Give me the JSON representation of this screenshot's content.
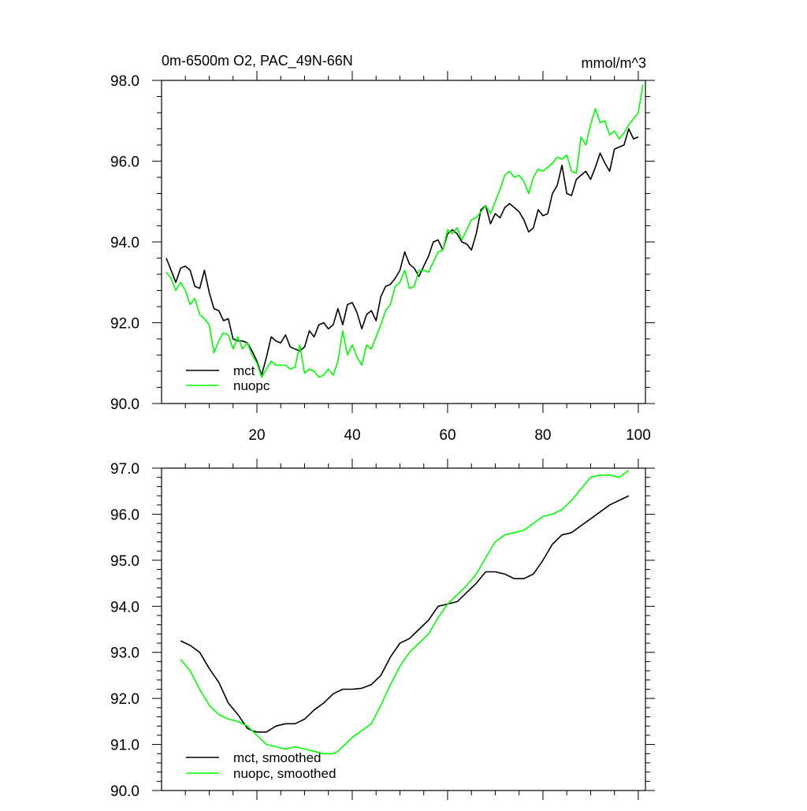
{
  "chart_data": [
    {
      "type": "line",
      "title": "0m-6500m O2, PAC_49N-66N",
      "units_label": "mmol/m^3",
      "xlabel": "",
      "ylabel": "",
      "xlim": [
        0,
        101.5
      ],
      "ylim": [
        90,
        98
      ],
      "x_ticks": [
        20,
        40,
        60,
        80,
        100
      ],
      "x_tick_labels": [
        "20",
        "40",
        "60",
        "80",
        "100"
      ],
      "y_ticks": [
        90,
        92,
        94,
        96,
        98
      ],
      "y_tick_labels": [
        "90.0",
        "92.0",
        "94.0",
        "96.0",
        "98.0"
      ],
      "legend_position": "bottom-left",
      "x": [
        1,
        2,
        3,
        4,
        5,
        6,
        7,
        8,
        9,
        10,
        11,
        12,
        13,
        14,
        15,
        16,
        17,
        18,
        19,
        20,
        21,
        22,
        23,
        24,
        25,
        26,
        27,
        28,
        29,
        30,
        31,
        32,
        33,
        34,
        35,
        36,
        37,
        38,
        39,
        40,
        41,
        42,
        43,
        44,
        45,
        46,
        47,
        48,
        49,
        50,
        51,
        52,
        53,
        54,
        55,
        56,
        57,
        58,
        59,
        60,
        61,
        62,
        63,
        64,
        65,
        66,
        67,
        68,
        69,
        70,
        71,
        72,
        73,
        74,
        75,
        76,
        77,
        78,
        79,
        80,
        81,
        82,
        83,
        84,
        85,
        86,
        87,
        88,
        89,
        90,
        91,
        92,
        93,
        94,
        95,
        96,
        97,
        98,
        99,
        100,
        101
      ],
      "series": [
        {
          "name": "mct",
          "color": "#000000",
          "values": [
            93.6,
            93.3,
            93.0,
            93.35,
            93.4,
            93.3,
            92.9,
            92.85,
            93.3,
            92.75,
            92.35,
            92.3,
            92.05,
            92.1,
            91.6,
            91.55,
            91.55,
            91.5,
            91.3,
            91.05,
            90.7,
            91.15,
            91.65,
            91.55,
            91.5,
            91.7,
            91.4,
            91.35,
            91.3,
            91.4,
            91.8,
            91.65,
            91.95,
            92.0,
            91.85,
            91.95,
            92.35,
            91.95,
            92.45,
            92.5,
            92.25,
            91.85,
            92.2,
            92.3,
            92.05,
            92.65,
            92.9,
            92.95,
            93.1,
            93.3,
            93.75,
            93.45,
            93.35,
            93.15,
            93.4,
            93.65,
            94.0,
            94.05,
            93.8,
            94.2,
            94.3,
            94.2,
            94.0,
            93.95,
            93.8,
            94.2,
            94.8,
            94.9,
            94.45,
            94.7,
            94.6,
            94.85,
            94.95,
            94.85,
            94.75,
            94.55,
            94.25,
            94.35,
            94.8,
            94.65,
            94.7,
            95.2,
            95.4,
            95.9,
            95.2,
            95.15,
            95.55,
            95.65,
            95.75,
            95.55,
            95.85,
            96.2,
            95.95,
            95.75,
            96.3,
            96.35,
            96.4,
            96.8,
            96.55,
            96.6,
            null
          ]
        },
        {
          "name": "nuopc",
          "color": "#00ff00",
          "values": [
            93.25,
            93.1,
            92.8,
            93.0,
            92.8,
            92.45,
            92.6,
            92.2,
            92.1,
            91.95,
            91.25,
            91.55,
            91.75,
            91.7,
            91.35,
            91.65,
            91.35,
            91.5,
            91.2,
            91.0,
            90.65,
            90.85,
            91.05,
            90.95,
            90.95,
            90.95,
            90.85,
            90.9,
            91.45,
            90.75,
            90.85,
            90.8,
            90.65,
            90.7,
            90.85,
            90.7,
            91.05,
            91.8,
            91.2,
            91.45,
            91.15,
            90.95,
            91.45,
            91.35,
            91.65,
            91.95,
            92.3,
            92.45,
            92.9,
            93.0,
            93.3,
            92.85,
            92.9,
            93.3,
            93.3,
            93.25,
            93.5,
            93.75,
            93.8,
            94.3,
            94.2,
            94.35,
            94.05,
            94.3,
            94.55,
            94.6,
            94.75,
            94.9,
            94.7,
            95.0,
            95.3,
            95.65,
            95.75,
            95.6,
            95.65,
            95.5,
            95.2,
            95.6,
            95.8,
            95.75,
            95.85,
            95.95,
            96.1,
            96.05,
            96.15,
            95.75,
            95.7,
            96.6,
            96.4,
            96.9,
            97.3,
            96.95,
            97.0,
            96.65,
            96.75,
            96.55,
            96.7,
            96.9,
            97.05,
            97.2,
            97.9
          ]
        }
      ],
      "legend": [
        {
          "label": "mct",
          "color": "#000000"
        },
        {
          "label": "nuopc",
          "color": "#00ff00"
        }
      ]
    },
    {
      "type": "line",
      "title": "",
      "xlabel": "",
      "ylabel": "",
      "xlim": [
        0,
        101.5
      ],
      "ylim": [
        90,
        97
      ],
      "x_ticks": [
        20,
        40,
        60,
        80,
        100
      ],
      "y_ticks": [
        90,
        91,
        92,
        93,
        94,
        95,
        96,
        97
      ],
      "y_tick_labels": [
        "90.0",
        "91.0",
        "92.0",
        "93.0",
        "94.0",
        "95.0",
        "96.0",
        "97.0"
      ],
      "legend_position": "bottom-left",
      "x": [
        4,
        6,
        8,
        10,
        12,
        14,
        16,
        18,
        19,
        20,
        21,
        22,
        24,
        26,
        28,
        30,
        32,
        34,
        36,
        37,
        38,
        40,
        42,
        44,
        46,
        48,
        50,
        52,
        54,
        56,
        58,
        60,
        62,
        64,
        66,
        68,
        70,
        72,
        74,
        76,
        78,
        80,
        82,
        84,
        86,
        88,
        90,
        92,
        94,
        96,
        98
      ],
      "series": [
        {
          "name": "mct, smoothed",
          "color": "#000000",
          "values": [
            93.25,
            93.15,
            93.0,
            92.65,
            92.35,
            91.9,
            91.65,
            91.35,
            91.3,
            91.27,
            91.27,
            91.27,
            91.4,
            91.45,
            91.45,
            91.55,
            91.75,
            91.9,
            92.1,
            92.15,
            92.2,
            92.2,
            92.22,
            92.3,
            92.5,
            92.9,
            93.2,
            93.3,
            93.5,
            93.7,
            94.0,
            94.05,
            94.1,
            94.3,
            94.5,
            94.75,
            94.75,
            94.7,
            94.6,
            94.6,
            94.7,
            95.0,
            95.35,
            95.55,
            95.6,
            95.75,
            95.9,
            96.05,
            96.2,
            96.3,
            96.4
          ]
        },
        {
          "name": "nuopc, smoothed",
          "color": "#00ff00",
          "values": [
            92.85,
            92.6,
            92.2,
            91.85,
            91.65,
            91.55,
            91.5,
            91.4,
            91.3,
            91.2,
            91.1,
            91.0,
            90.95,
            90.9,
            90.95,
            90.9,
            90.85,
            90.8,
            90.8,
            90.85,
            90.95,
            91.15,
            91.3,
            91.45,
            91.85,
            92.3,
            92.7,
            93.0,
            93.2,
            93.4,
            93.75,
            94.05,
            94.25,
            94.45,
            94.7,
            95.05,
            95.4,
            95.55,
            95.6,
            95.65,
            95.8,
            95.95,
            96.0,
            96.1,
            96.3,
            96.55,
            96.8,
            96.85,
            96.85,
            96.8,
            96.95
          ]
        }
      ],
      "legend": [
        {
          "label": "mct, smoothed",
          "color": "#000000"
        },
        {
          "label": "nuopc, smoothed",
          "color": "#00ff00"
        }
      ]
    }
  ]
}
